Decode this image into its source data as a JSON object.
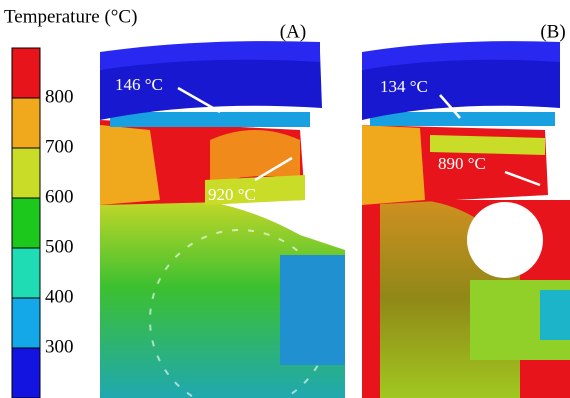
{
  "colorbar": {
    "title": "Temperature (°C)",
    "ticks": [
      800,
      700,
      600,
      500,
      400,
      300
    ],
    "colors": [
      "#e8141c",
      "#f0a81c",
      "#c8dc28",
      "#1cc81c",
      "#20dcb4",
      "#14a8e8",
      "#1414e0"
    ]
  },
  "panels": [
    {
      "label": "(A)",
      "annotations": [
        "146 °C",
        "920 °C"
      ]
    },
    {
      "label": "(B)",
      "annotations": [
        "134 °C",
        "890 °C"
      ]
    }
  ]
}
